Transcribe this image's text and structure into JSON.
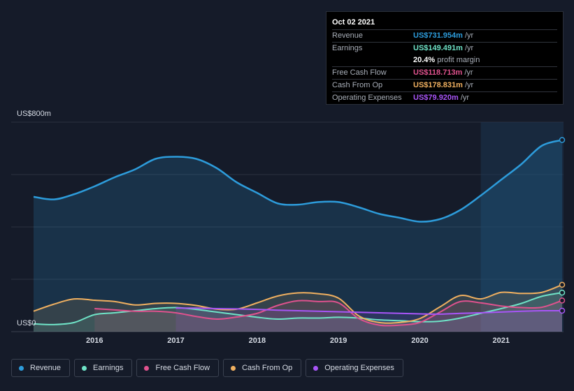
{
  "tooltip": {
    "date": "Oct 02 2021",
    "rows": [
      {
        "label": "Revenue",
        "value": "US$731.954m",
        "unit": "/yr",
        "color": "#2d9cdb"
      },
      {
        "label": "Earnings",
        "value": "US$149.491m",
        "unit": "/yr",
        "color": "#6fe3c7"
      },
      {
        "label": "",
        "value": "20.4%",
        "unit": "profit margin",
        "color": "#ffffff"
      },
      {
        "label": "Free Cash Flow",
        "value": "US$118.713m",
        "unit": "/yr",
        "color": "#e0528e"
      },
      {
        "label": "Cash From Op",
        "value": "US$178.831m",
        "unit": "/yr",
        "color": "#f0b060"
      },
      {
        "label": "Operating Expenses",
        "value": "US$79.920m",
        "unit": "/yr",
        "color": "#a855f7"
      }
    ]
  },
  "legend": [
    {
      "label": "Revenue",
      "color": "#2d9cdb"
    },
    {
      "label": "Earnings",
      "color": "#6fe3c7"
    },
    {
      "label": "Free Cash Flow",
      "color": "#e0528e"
    },
    {
      "label": "Cash From Op",
      "color": "#f0b060"
    },
    {
      "label": "Operating Expenses",
      "color": "#a855f7"
    }
  ],
  "chart_data": {
    "type": "area",
    "ylim": [
      0,
      800
    ],
    "y_tick_labels": {
      "top": "US$800m",
      "bottom": "US$0"
    },
    "xlim": [
      2015.25,
      2021.75
    ],
    "x_ticks": [
      2016,
      2017,
      2018,
      2019,
      2020,
      2021
    ],
    "grid": true,
    "legend_placement": "bottom",
    "highlight_start": 2020.75,
    "series": [
      {
        "name": "Revenue",
        "color": "#2d9cdb",
        "x": [
          2015.25,
          2015.5,
          2015.75,
          2016.0,
          2016.25,
          2016.5,
          2016.75,
          2017.0,
          2017.25,
          2017.5,
          2017.75,
          2018.0,
          2018.25,
          2018.5,
          2018.75,
          2019.0,
          2019.25,
          2019.5,
          2019.75,
          2020.0,
          2020.25,
          2020.5,
          2020.75,
          2021.0,
          2021.25,
          2021.5,
          2021.75
        ],
        "values": [
          515,
          505,
          525,
          555,
          590,
          620,
          660,
          668,
          660,
          625,
          570,
          530,
          490,
          485,
          495,
          495,
          475,
          450,
          435,
          420,
          430,
          465,
          520,
          580,
          640,
          710,
          732
        ]
      },
      {
        "name": "Earnings",
        "color": "#6fe3c7",
        "x": [
          2015.25,
          2015.5,
          2015.75,
          2016.0,
          2016.25,
          2016.5,
          2016.75,
          2017.0,
          2017.25,
          2017.5,
          2017.75,
          2018.0,
          2018.25,
          2018.5,
          2018.75,
          2019.0,
          2019.25,
          2019.5,
          2019.75,
          2020.0,
          2020.25,
          2020.5,
          2020.75,
          2021.0,
          2021.25,
          2021.5,
          2021.75
        ],
        "values": [
          30,
          27,
          35,
          65,
          72,
          80,
          88,
          92,
          85,
          75,
          65,
          55,
          48,
          52,
          52,
          55,
          52,
          45,
          42,
          38,
          40,
          52,
          70,
          88,
          108,
          135,
          149
        ]
      },
      {
        "name": "Free Cash Flow",
        "color": "#e0528e",
        "x": [
          2016.0,
          2016.25,
          2016.5,
          2016.75,
          2017.0,
          2017.25,
          2017.5,
          2017.75,
          2018.0,
          2018.25,
          2018.5,
          2018.75,
          2019.0,
          2019.25,
          2019.5,
          2019.75,
          2020.0,
          2020.25,
          2020.5,
          2020.75,
          2021.0,
          2021.25,
          2021.5,
          2021.75
        ],
        "values": [
          88,
          83,
          78,
          78,
          72,
          58,
          48,
          56,
          70,
          100,
          118,
          115,
          110,
          50,
          25,
          25,
          35,
          75,
          115,
          110,
          98,
          92,
          93,
          119
        ]
      },
      {
        "name": "Cash From Op",
        "color": "#f0b060",
        "x": [
          2015.25,
          2015.5,
          2015.75,
          2016.0,
          2016.25,
          2016.5,
          2016.75,
          2017.0,
          2017.25,
          2017.5,
          2017.75,
          2018.0,
          2018.25,
          2018.5,
          2018.75,
          2019.0,
          2019.25,
          2019.5,
          2019.75,
          2020.0,
          2020.25,
          2020.5,
          2020.75,
          2021.0,
          2021.25,
          2021.5,
          2021.75
        ],
        "values": [
          78,
          105,
          125,
          120,
          115,
          102,
          108,
          108,
          100,
          86,
          86,
          110,
          136,
          148,
          145,
          128,
          60,
          35,
          35,
          50,
          95,
          138,
          125,
          150,
          146,
          150,
          179
        ]
      },
      {
        "name": "Operating Expenses",
        "color": "#a855f7",
        "x": [
          2017.0,
          2017.25,
          2017.5,
          2017.75,
          2018.0,
          2018.25,
          2018.5,
          2018.75,
          2019.0,
          2019.25,
          2019.5,
          2019.75,
          2020.0,
          2020.25,
          2020.5,
          2020.75,
          2021.0,
          2021.25,
          2021.5,
          2021.75
        ],
        "values": [
          90,
          90,
          88,
          87,
          85,
          82,
          80,
          78,
          76,
          74,
          72,
          70,
          68,
          67,
          70,
          72,
          75,
          78,
          80,
          80
        ]
      }
    ]
  }
}
